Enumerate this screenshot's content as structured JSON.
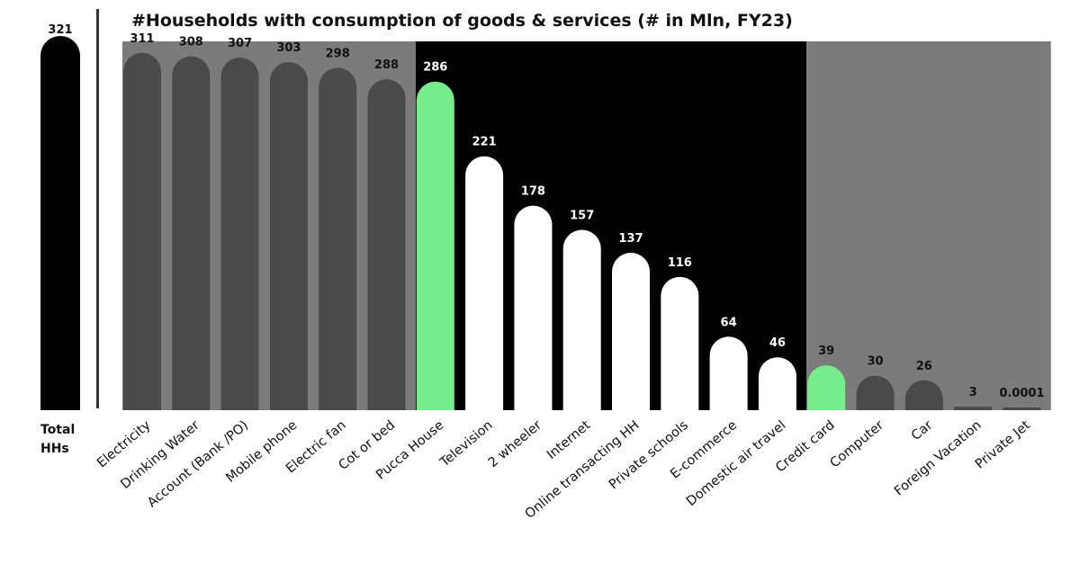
{
  "chart_data": {
    "type": "bar",
    "title": "#Households with consumption of goods & services (# in Mln, FY23)",
    "total": {
      "label_line1": "Total",
      "label_line2": "HHs",
      "value": 321
    },
    "categories": [
      "Electricity",
      "Drinking Water",
      "Account (Bank /PO)",
      "Mobile phone",
      "Electric fan",
      "Cot or bed",
      "Pucca House",
      "Television",
      "2 wheeler",
      "Internet",
      "Online transacting HH",
      "Private schools",
      "E-commerce",
      "Domestic air travel",
      "Credit card",
      "Computer",
      "Car",
      "Foreign Vacation",
      "Private Jet"
    ],
    "values": [
      311,
      308,
      307,
      303,
      298,
      288,
      286,
      221,
      178,
      157,
      137,
      116,
      64,
      46,
      39,
      30,
      26,
      3,
      0.0001
    ],
    "value_labels": [
      "311",
      "308",
      "307",
      "303",
      "298",
      "288",
      "286",
      "221",
      "178",
      "157",
      "137",
      "116",
      "64",
      "46",
      "39",
      "30",
      "26",
      "3",
      "0.0001"
    ],
    "groups": [
      {
        "from": 0,
        "to": 5,
        "background": "#7b7b7b"
      },
      {
        "from": 6,
        "to": 13,
        "background": "#000000"
      },
      {
        "from": 14,
        "to": 18,
        "background": "#7b7b7b"
      }
    ],
    "bar_colors": [
      "#4a4a4a",
      "#4a4a4a",
      "#4a4a4a",
      "#4a4a4a",
      "#4a4a4a",
      "#4a4a4a",
      "#76ec8c",
      "#ffffff",
      "#ffffff",
      "#ffffff",
      "#ffffff",
      "#ffffff",
      "#ffffff",
      "#ffffff",
      "#76ec8c",
      "#4a4a4a",
      "#4a4a4a",
      "#4a4a4a",
      "#4a4a4a"
    ],
    "value_label_colors": [
      "#111111",
      "#111111",
      "#111111",
      "#111111",
      "#111111",
      "#111111",
      "#ffffff",
      "#ffffff",
      "#ffffff",
      "#ffffff",
      "#ffffff",
      "#ffffff",
      "#ffffff",
      "#ffffff",
      "#111111",
      "#111111",
      "#111111",
      "#111111",
      "#111111"
    ],
    "total_bar_color": "#000000",
    "ylim": [
      0,
      321
    ],
    "grid": false,
    "legend": "none"
  }
}
